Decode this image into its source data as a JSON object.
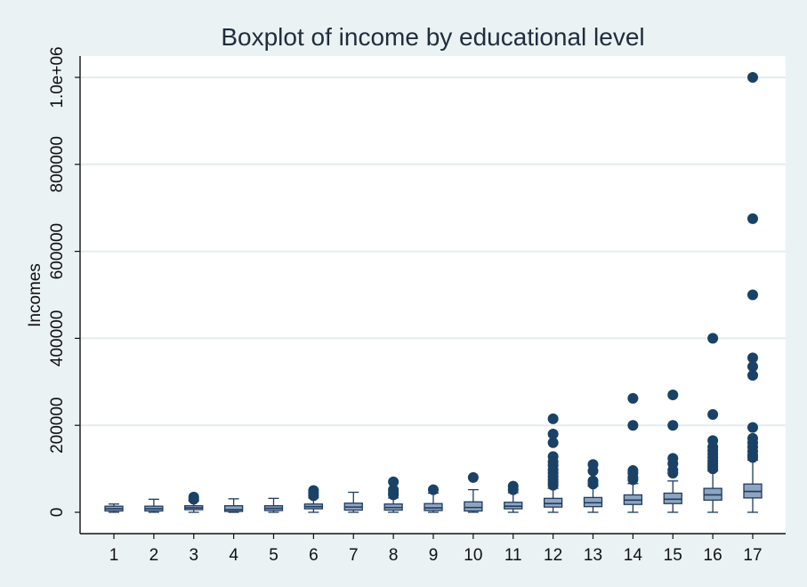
{
  "chart_data": {
    "type": "box",
    "title": "Boxplot of income by educational level",
    "xlabel": "",
    "ylabel": "Incomes",
    "ylim": [
      -40000,
      1050000
    ],
    "y_ticks": [
      0,
      200000,
      400000,
      600000,
      800000,
      1000000
    ],
    "y_tick_labels": [
      "0",
      "200000",
      "400000",
      "600000",
      "800000",
      "1.0e+06"
    ],
    "grid": true,
    "colors": {
      "box_fill": "#8ea4c0",
      "box_stroke": "#1f3b5e",
      "outlier": "#1a4166",
      "grid": "#e3ecee",
      "plot_bg": "#ffffff",
      "page_bg": "#eaf2f3"
    },
    "categories": [
      "1",
      "2",
      "3",
      "4",
      "5",
      "6",
      "7",
      "8",
      "9",
      "10",
      "11",
      "12",
      "13",
      "14",
      "15",
      "16",
      "17"
    ],
    "boxes": [
      {
        "cat": "1",
        "min": 0,
        "q1": 3000,
        "median": 8000,
        "q3": 14000,
        "max": 19000,
        "outliers": []
      },
      {
        "cat": "2",
        "min": 0,
        "q1": 3000,
        "median": 8000,
        "q3": 14000,
        "max": 30000,
        "outliers": []
      },
      {
        "cat": "3",
        "min": 0,
        "q1": 6000,
        "median": 10000,
        "q3": 15000,
        "max": 26000,
        "outliers": [
          30000,
          35000
        ]
      },
      {
        "cat": "4",
        "min": 0,
        "q1": 2000,
        "median": 6000,
        "q3": 15000,
        "max": 31000,
        "outliers": []
      },
      {
        "cat": "5",
        "min": 0,
        "q1": 4000,
        "median": 9000,
        "q3": 15000,
        "max": 32000,
        "outliers": []
      },
      {
        "cat": "6",
        "min": 0,
        "q1": 8000,
        "median": 13000,
        "q3": 19000,
        "max": 33000,
        "outliers": [
          38000,
          44000,
          50000
        ]
      },
      {
        "cat": "7",
        "min": 0,
        "q1": 5000,
        "median": 12000,
        "q3": 21000,
        "max": 46000,
        "outliers": []
      },
      {
        "cat": "8",
        "min": 0,
        "q1": 5000,
        "median": 11000,
        "q3": 19000,
        "max": 33000,
        "outliers": [
          40000,
          45000,
          52000,
          70000
        ]
      },
      {
        "cat": "9",
        "min": 0,
        "q1": 4000,
        "median": 10000,
        "q3": 20000,
        "max": 44000,
        "outliers": [
          52000
        ]
      },
      {
        "cat": "10",
        "min": 0,
        "q1": 3000,
        "median": 11000,
        "q3": 24000,
        "max": 52000,
        "outliers": [
          80000
        ]
      },
      {
        "cat": "11",
        "min": 0,
        "q1": 8000,
        "median": 14000,
        "q3": 23000,
        "max": 45000,
        "outliers": [
          52000,
          60000
        ]
      },
      {
        "cat": "12",
        "min": 0,
        "q1": 12000,
        "median": 20000,
        "q3": 32000,
        "max": 55000,
        "outliers": [
          62000,
          68000,
          75000,
          82000,
          90000,
          98000,
          108000,
          116000,
          128000,
          160000,
          180000,
          215000
        ]
      },
      {
        "cat": "13",
        "min": 0,
        "q1": 13000,
        "median": 22000,
        "q3": 34000,
        "max": 60000,
        "outliers": [
          65000,
          72000,
          95000,
          110000
        ]
      },
      {
        "cat": "14",
        "min": 0,
        "q1": 18000,
        "median": 28000,
        "q3": 40000,
        "max": 66000,
        "outliers": [
          75000,
          80000,
          90000,
          96000,
          200000,
          262000
        ]
      },
      {
        "cat": "15",
        "min": 0,
        "q1": 20000,
        "median": 30000,
        "q3": 44000,
        "max": 72000,
        "outliers": [
          90000,
          97000,
          112000,
          124000,
          200000,
          270000
        ]
      },
      {
        "cat": "16",
        "min": 0,
        "q1": 28000,
        "median": 40000,
        "q3": 55000,
        "max": 95000,
        "outliers": [
          100000,
          106000,
          112000,
          118000,
          126000,
          134000,
          142000,
          150000,
          165000,
          225000,
          400000
        ]
      },
      {
        "cat": "17",
        "min": 0,
        "q1": 33000,
        "median": 48000,
        "q3": 65000,
        "max": 120000,
        "outliers": [
          126000,
          132000,
          140000,
          150000,
          160000,
          170000,
          195000,
          315000,
          335000,
          355000,
          500000,
          675000,
          1000000
        ]
      }
    ]
  }
}
